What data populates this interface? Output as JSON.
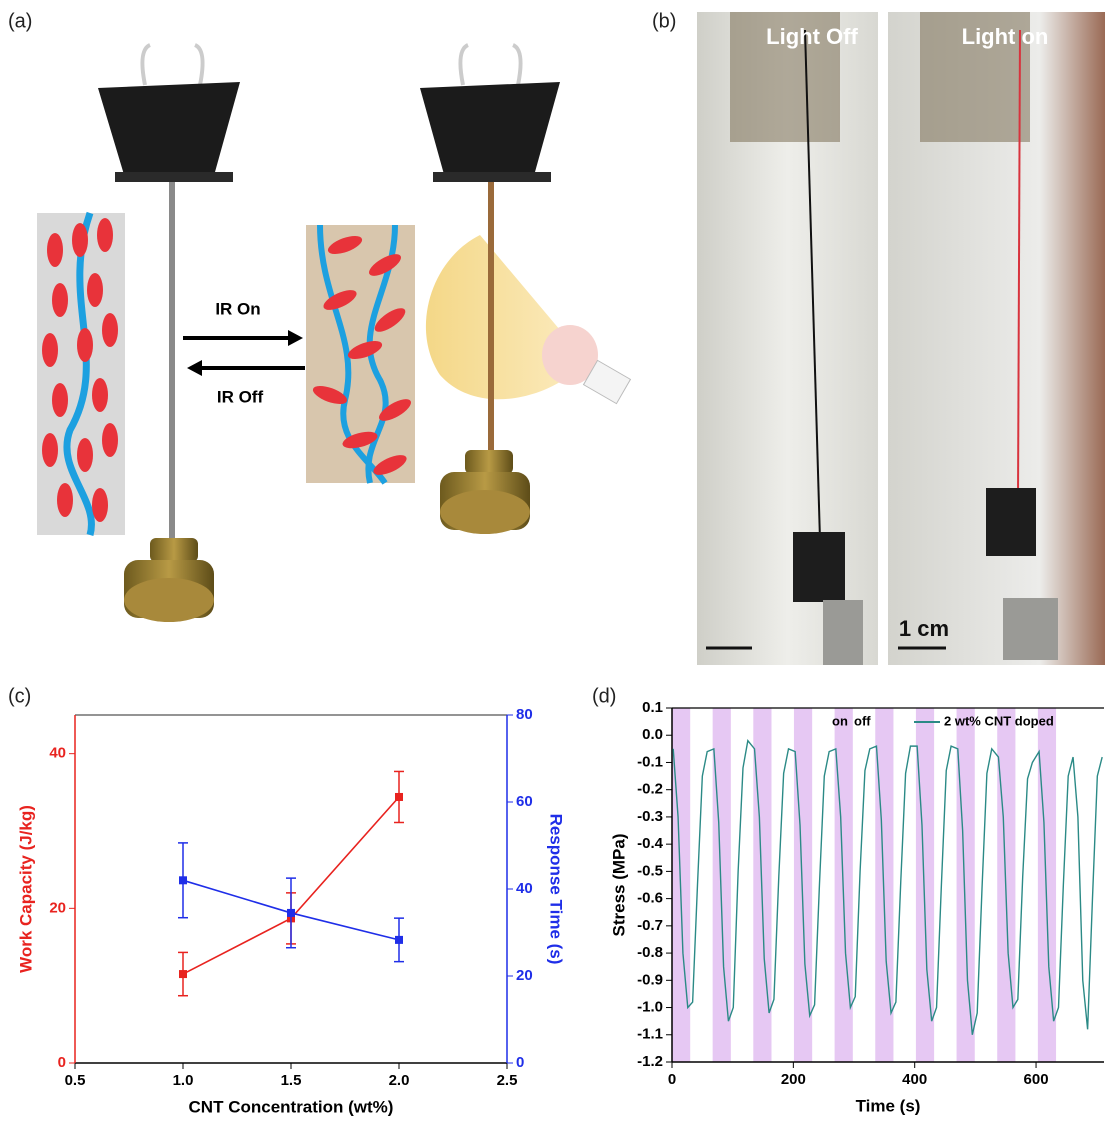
{
  "panel_labels": [
    "(a)",
    "(b)",
    "(c)",
    "(d)"
  ],
  "diagram": {
    "arrow_on": "IR On",
    "arrow_off": "IR Off"
  },
  "photo": {
    "left_label": "Light Off",
    "right_label": "Light on",
    "scale_bar": "1 cm"
  },
  "chart_data": [
    {
      "type": "line",
      "xlabel": "CNT Concentration (wt%)",
      "ylabel": "Work Capacity (J/kg)",
      "y2label": "Response Time (s)",
      "x": [
        1,
        1.5,
        2
      ],
      "xlim": [
        0.5,
        2.5
      ],
      "xticks": [
        0.5,
        {
          "value": 1,
          "label": "1.0"
        },
        1.5,
        {
          "value": 2,
          "label": "2.0"
        },
        2.5
      ],
      "ylim": [
        0,
        45
      ],
      "yticks": [
        0,
        20,
        40
      ],
      "y2lim": [
        0,
        80
      ],
      "y2ticks": [
        0,
        20,
        40,
        60,
        80
      ],
      "series": [
        {
          "color": "#e8231f",
          "values": [
            11.5,
            18.7,
            34.4
          ],
          "errors": [
            2.8,
            3.3,
            3.3
          ]
        },
        {
          "color": "#1f2ee8",
          "axis": "y2",
          "values": [
            42,
            34.5,
            28.3
          ],
          "errors": [
            8.6,
            8,
            5
          ]
        }
      ]
    },
    {
      "type": "line",
      "xlabel": "Time (s)",
      "ylabel": "Stress (MPa)",
      "xlim": [
        0,
        712
      ],
      "xticks": [
        0,
        200,
        400,
        600
      ],
      "ylim": [
        -1.2,
        0.1
      ],
      "yticks": [
        0.1,
        {
          "value": 0,
          "label": "0.0"
        },
        -0.1,
        -0.2,
        -0.3,
        -0.4,
        -0.5,
        -0.6,
        -0.7,
        -0.8,
        -0.9,
        {
          "value": -1,
          "label": "-1.0"
        },
        -1.1,
        -1.2
      ],
      "legend": "upper right",
      "shaded": [
        [
          0,
          30
        ],
        [
          67,
          97
        ],
        [
          134,
          164
        ],
        [
          201,
          231
        ],
        [
          268,
          298
        ],
        [
          335,
          365
        ],
        [
          402,
          432
        ],
        [
          469,
          499
        ],
        [
          536,
          566
        ],
        [
          603,
          633
        ]
      ],
      "shade_color": "#e6c8f3",
      "annotations": [
        "on",
        "off"
      ],
      "x": [
        2,
        10,
        18,
        26,
        34,
        42,
        50,
        58,
        69,
        77,
        85,
        93,
        101,
        109,
        117,
        125,
        136,
        144,
        152,
        160,
        168,
        176,
        184,
        192,
        203,
        211,
        219,
        227,
        235,
        243,
        251,
        259,
        270,
        278,
        286,
        294,
        302,
        310,
        318,
        326,
        337,
        345,
        353,
        361,
        369,
        377,
        385,
        393,
        404,
        412,
        420,
        428,
        436,
        444,
        452,
        460,
        471,
        479,
        487,
        495,
        503,
        511,
        519,
        527,
        538,
        546,
        554,
        562,
        570,
        578,
        586,
        594,
        605,
        613,
        621,
        629,
        637,
        645,
        653,
        661,
        669,
        677,
        685,
        693,
        701,
        709
      ],
      "series": [
        {
          "name": "2 wt% CNT doped",
          "color": "#2b8a86",
          "values": [
            -0.05,
            -0.3,
            -0.8,
            -1.0,
            -0.98,
            -0.55,
            -0.15,
            -0.06,
            -0.05,
            -0.32,
            -0.85,
            -1.05,
            -1.0,
            -0.5,
            -0.12,
            -0.02,
            -0.05,
            -0.3,
            -0.82,
            -1.02,
            -0.97,
            -0.52,
            -0.14,
            -0.05,
            -0.06,
            -0.33,
            -0.84,
            -1.03,
            -0.99,
            -0.55,
            -0.15,
            -0.06,
            -0.05,
            -0.3,
            -0.8,
            -1.0,
            -0.96,
            -0.5,
            -0.13,
            -0.05,
            -0.04,
            -0.31,
            -0.83,
            -1.02,
            -0.98,
            -0.54,
            -0.14,
            -0.04,
            -0.04,
            -0.33,
            -0.86,
            -1.05,
            -1.0,
            -0.55,
            -0.13,
            -0.04,
            -0.05,
            -0.35,
            -0.9,
            -1.1,
            -1.02,
            -0.56,
            -0.14,
            -0.05,
            -0.08,
            -0.3,
            -0.8,
            -1.0,
            -0.97,
            -0.52,
            -0.16,
            -0.1,
            -0.06,
            -0.32,
            -0.85,
            -1.05,
            -1.0,
            -0.55,
            -0.15,
            -0.08,
            -0.3,
            -0.9,
            -1.08,
            -0.6,
            -0.15,
            -0.08
          ]
        }
      ]
    }
  ]
}
